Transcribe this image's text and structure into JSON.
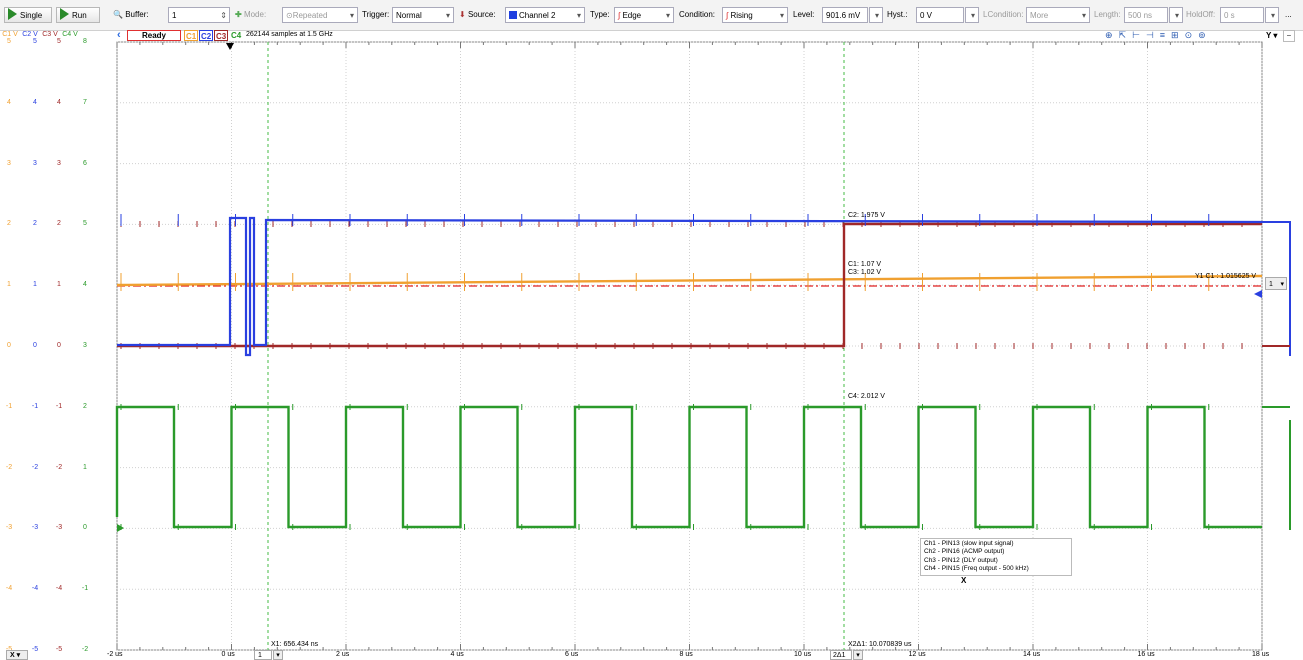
{
  "toolbar": {
    "single": "Single",
    "run": "Run",
    "buffer_label": "Buffer:",
    "buffer_value": "1",
    "mode_label": "Mode:",
    "mode_value": "Repeated",
    "trigger_label": "Trigger:",
    "trigger_value": "Normal",
    "source_label": "Source:",
    "source_value": "Channel 2",
    "type_label": "Type:",
    "type_value": "Edge",
    "condition_label": "Condition:",
    "condition_value": "Rising",
    "level_label": "Level:",
    "level_value": "901.6 mV",
    "hyst_label": "Hyst.:",
    "hyst_value": "0 V",
    "lcondition_label": "LCondition:",
    "lcondition_value": "More",
    "length_label": "Length:",
    "length_value": "500 ns",
    "holdoff_label": "HoldOff:",
    "holdoff_value": "0 s",
    "more": "..."
  },
  "status": {
    "ready": "Ready",
    "c1": "C1",
    "c2": "C2",
    "c3": "C3",
    "c4": "C4",
    "samples": "262144 samples at 1.5 GHz"
  },
  "axis_headers": [
    "C1 V",
    "C2 V",
    "C3 V",
    "C4 V"
  ],
  "y_rows": [
    [
      "5",
      "5",
      "5",
      "8"
    ],
    [
      "4",
      "4",
      "4",
      "7"
    ],
    [
      "3",
      "3",
      "3",
      "6"
    ],
    [
      "2",
      "2",
      "2",
      "5"
    ],
    [
      "1",
      "1",
      "1",
      "4"
    ],
    [
      "0",
      "0",
      "0",
      "3"
    ],
    [
      "-1",
      "-1",
      "-1",
      "2"
    ],
    [
      "-2",
      "-2",
      "-2",
      "1"
    ],
    [
      "-3",
      "-3",
      "-3",
      "0"
    ],
    [
      "-4",
      "-4",
      "-4",
      "-1"
    ],
    [
      "-5",
      "-5",
      "-5",
      "-2"
    ]
  ],
  "x_ticks": [
    "-2 us",
    "0 us",
    "2 us",
    "4 us",
    "6 us",
    "8 us",
    "10 us",
    "12 us",
    "14 us",
    "16 us",
    "18 us"
  ],
  "cursors": {
    "x1_label": "X1: 656.434 ns",
    "x2_label": "X2Δ1: 10.070839 us",
    "x1_sel": "1",
    "x2_sel": "2Δ1",
    "x_btn": "X",
    "y1_label": "Y1 C1 : 1.015625 V",
    "y1_sel": "1"
  },
  "measurements": {
    "c2": "C2: 1.975 V",
    "c1": "C1: 1.07 V",
    "c3": "C3: 1.02 V",
    "c4": "C4: 2.012 V"
  },
  "legend": {
    "lines": [
      "Ch1 - PIN13 (slow input signal)",
      "Ch2 - PIN16 (ACMP output)",
      "Ch3 - PIN12 (DLY output)",
      "Ch4 - PIN15 (Freq output - 500 kHz)"
    ],
    "close": "X"
  },
  "colors": {
    "c1": "#f0a030",
    "c2": "#2a40e0",
    "c3": "#a02828",
    "c4": "#2a9a2a",
    "cursor": "#44bb44",
    "y_cursor": "#e02020"
  }
}
